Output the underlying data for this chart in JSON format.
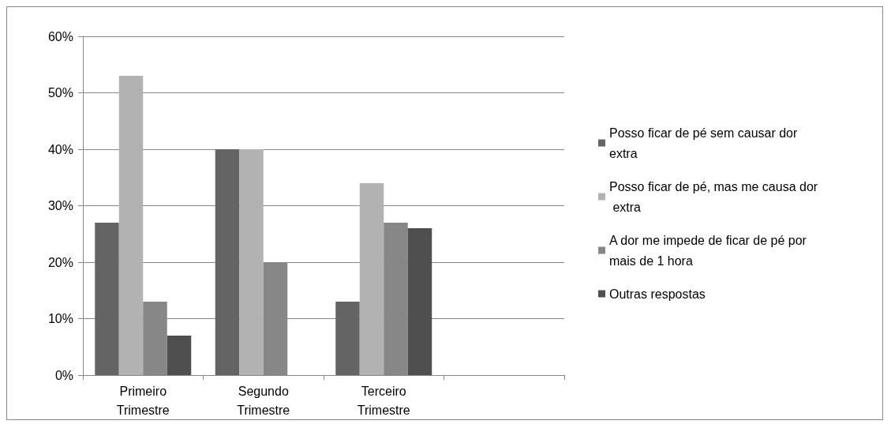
{
  "chart_data": {
    "type": "bar",
    "categories": [
      "Primeiro Trimestre",
      "Segundo Trimestre",
      "Terceiro Trimestre",
      null
    ],
    "series": [
      {
        "name": "Posso ficar de pé sem causar dor extra",
        "color": "#646464",
        "values": [
          27,
          40,
          13,
          null
        ]
      },
      {
        "name": "Posso ficar de pé, mas me causa dor extra",
        "color": "#b2b2b2",
        "values": [
          53,
          40,
          34,
          null
        ]
      },
      {
        "name": "A dor me impede de ficar de pé por mais de 1 hora",
        "color": "#878787",
        "values": [
          13,
          20,
          27,
          null
        ]
      },
      {
        "name": "Outras respostas",
        "color": "#4f4f4f",
        "values": [
          7,
          null,
          26,
          null
        ]
      }
    ],
    "ylim": [
      0,
      60
    ],
    "yticks": [
      {
        "value": 0,
        "label": "0%"
      },
      {
        "value": 10,
        "label": "10%"
      },
      {
        "value": 20,
        "label": "20%"
      },
      {
        "value": 30,
        "label": "30%"
      },
      {
        "value": 40,
        "label": "40%"
      },
      {
        "value": 50,
        "label": "50%"
      },
      {
        "value": 60,
        "label": "60%"
      }
    ],
    "grid": "y",
    "legend": "right"
  }
}
